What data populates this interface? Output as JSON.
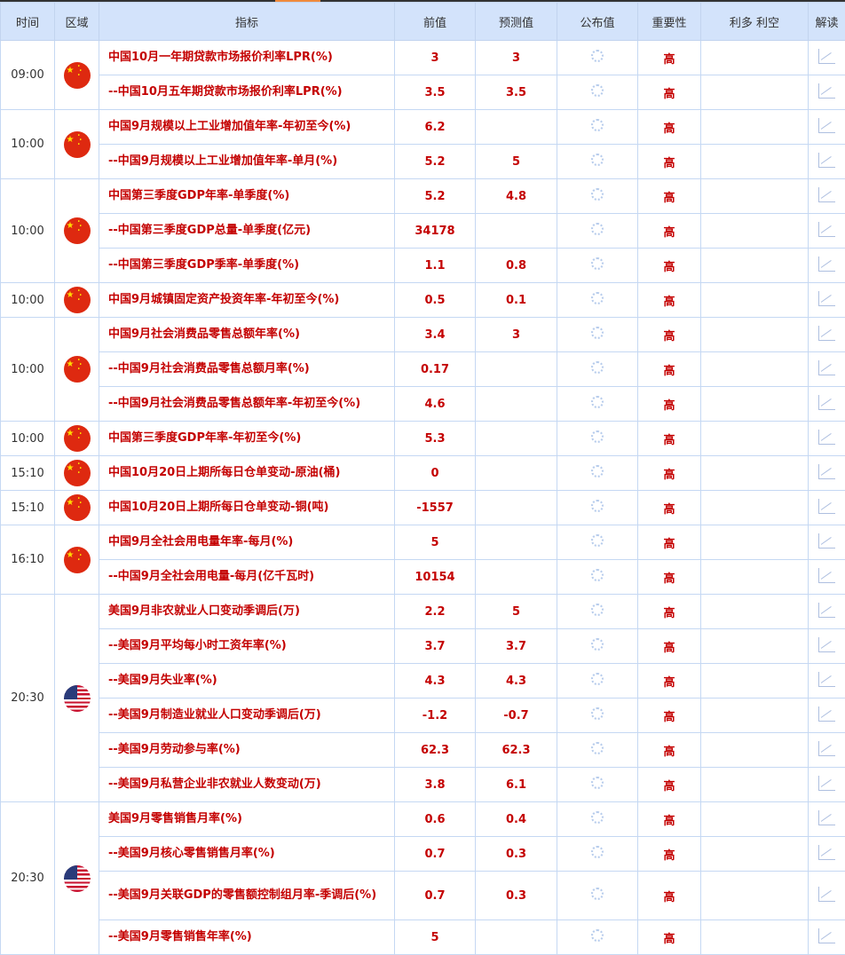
{
  "header": [
    "时间",
    "区域",
    "指标",
    "前值",
    "预测值",
    "公布值",
    "重要性",
    "利多 利空",
    "解读"
  ],
  "colors": {
    "value_red": "#c40000",
    "header_bg": "#d3e3fb",
    "border": "#c5d8f3"
  },
  "groups": [
    {
      "time": "09:00",
      "region": "china-flag",
      "rows": [
        {
          "indicator": "中国10月一年期贷款市场报价利率LPR(%)",
          "prev": "3",
          "forecast": "3",
          "actual": "",
          "importance": "高"
        },
        {
          "indicator": "--中国10月五年期贷款市场报价利率LPR(%)",
          "prev": "3.5",
          "forecast": "3.5",
          "actual": "",
          "importance": "高"
        }
      ]
    },
    {
      "time": "10:00",
      "region": "china-flag",
      "rows": [
        {
          "indicator": "中国9月规模以上工业增加值年率-年初至今(%)",
          "prev": "6.2",
          "forecast": "",
          "actual": "",
          "importance": "高"
        },
        {
          "indicator": "--中国9月规模以上工业增加值年率-单月(%)",
          "prev": "5.2",
          "forecast": "5",
          "actual": "",
          "importance": "高"
        }
      ]
    },
    {
      "time": "10:00",
      "region": "china-flag",
      "rows": [
        {
          "indicator": "中国第三季度GDP年率-单季度(%)",
          "prev": "5.2",
          "forecast": "4.8",
          "actual": "",
          "importance": "高"
        },
        {
          "indicator": "--中国第三季度GDP总量-单季度(亿元)",
          "prev": "34178",
          "forecast": "",
          "actual": "",
          "importance": "高"
        },
        {
          "indicator": "--中国第三季度GDP季率-单季度(%)",
          "prev": "1.1",
          "forecast": "0.8",
          "actual": "",
          "importance": "高"
        }
      ]
    },
    {
      "time": "10:00",
      "region": "china-flag",
      "rows": [
        {
          "indicator": "中国9月城镇固定资产投资年率-年初至今(%)",
          "prev": "0.5",
          "forecast": "0.1",
          "actual": "",
          "importance": "高"
        }
      ]
    },
    {
      "time": "10:00",
      "region": "china-flag",
      "rows": [
        {
          "indicator": "中国9月社会消费品零售总额年率(%)",
          "prev": "3.4",
          "forecast": "3",
          "actual": "",
          "importance": "高"
        },
        {
          "indicator": "--中国9月社会消费品零售总额月率(%)",
          "prev": "0.17",
          "forecast": "",
          "actual": "",
          "importance": "高"
        },
        {
          "indicator": "--中国9月社会消费品零售总额年率-年初至今(%)",
          "prev": "4.6",
          "forecast": "",
          "actual": "",
          "importance": "高"
        }
      ]
    },
    {
      "time": "10:00",
      "region": "china-flag",
      "rows": [
        {
          "indicator": "中国第三季度GDP年率-年初至今(%)",
          "prev": "5.3",
          "forecast": "",
          "actual": "",
          "importance": "高"
        }
      ]
    },
    {
      "time": "15:10",
      "region": "china-flag",
      "rows": [
        {
          "indicator": "中国10月20日上期所每日仓单变动-原油(桶)",
          "prev": "0",
          "forecast": "",
          "actual": "",
          "importance": "高"
        }
      ]
    },
    {
      "time": "15:10",
      "region": "china-flag",
      "rows": [
        {
          "indicator": "中国10月20日上期所每日仓单变动-铜(吨)",
          "prev": "-1557",
          "forecast": "",
          "actual": "",
          "importance": "高"
        }
      ]
    },
    {
      "time": "16:10",
      "region": "china-flag",
      "rows": [
        {
          "indicator": "中国9月全社会用电量年率-每月(%)",
          "prev": "5",
          "forecast": "",
          "actual": "",
          "importance": "高"
        },
        {
          "indicator": "--中国9月全社会用电量-每月(亿千瓦时)",
          "prev": "10154",
          "forecast": "",
          "actual": "",
          "importance": "高"
        }
      ]
    },
    {
      "time": "20:30",
      "region": "usa-flag",
      "rows": [
        {
          "indicator": "美国9月非农就业人口变动季调后(万)",
          "prev": "2.2",
          "forecast": "5",
          "actual": "",
          "importance": "高"
        },
        {
          "indicator": "--美国9月平均每小时工资年率(%)",
          "prev": "3.7",
          "forecast": "3.7",
          "actual": "",
          "importance": "高"
        },
        {
          "indicator": "--美国9月失业率(%)",
          "prev": "4.3",
          "forecast": "4.3",
          "actual": "",
          "importance": "高"
        },
        {
          "indicator": "--美国9月制造业就业人口变动季调后(万)",
          "prev": "-1.2",
          "forecast": "-0.7",
          "actual": "",
          "importance": "高"
        },
        {
          "indicator": "--美国9月劳动参与率(%)",
          "prev": "62.3",
          "forecast": "62.3",
          "actual": "",
          "importance": "高"
        },
        {
          "indicator": "--美国9月私营企业非农就业人数变动(万)",
          "prev": "3.8",
          "forecast": "6.1",
          "actual": "",
          "importance": "高"
        }
      ]
    },
    {
      "time": "20:30",
      "region": "usa-flag",
      "rows": [
        {
          "indicator": "美国9月零售销售月率(%)",
          "prev": "0.6",
          "forecast": "0.4",
          "actual": "",
          "importance": "高"
        },
        {
          "indicator": "--美国9月核心零售销售月率(%)",
          "prev": "0.7",
          "forecast": "0.3",
          "actual": "",
          "importance": "高"
        },
        {
          "indicator": "--美国9月关联GDP的零售额控制组月率-季调后(%)",
          "prev": "0.7",
          "forecast": "0.3",
          "actual": "",
          "importance": "高"
        },
        {
          "indicator": "--美国9月零售销售年率(%)",
          "prev": "5",
          "forecast": "",
          "actual": "",
          "importance": "高"
        }
      ]
    }
  ]
}
